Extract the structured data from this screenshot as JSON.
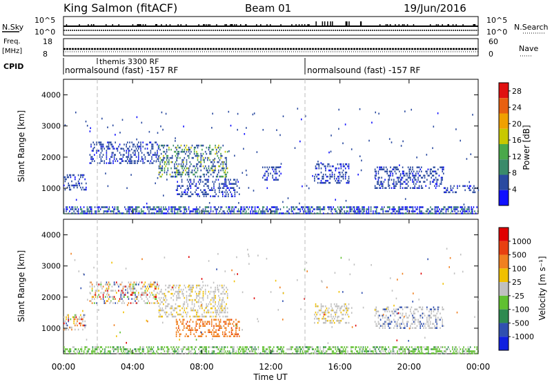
{
  "header": {
    "station": "King Salmon (fitACF)",
    "beam": "Beam 01",
    "date": "19/Jun/2016"
  },
  "strips": {
    "nsky": {
      "label": "N.Sky",
      "ticks": [
        "10^5",
        "10^0"
      ]
    },
    "nsearch": {
      "label": "N.Search",
      "ticks": [
        "10^5",
        "10^0"
      ]
    },
    "freq": {
      "label1": "Freq.",
      "label2": "[MHz]",
      "ticks": [
        "18",
        "8"
      ]
    },
    "nave": {
      "label": "Nave",
      "ticks": [
        "60",
        "0"
      ]
    },
    "cpid": {
      "label": "CPID",
      "segments": [
        {
          "text": "themis 3300 RF",
          "start_hour": 1.5
        },
        {
          "text": "normalsound (fast) -157 RF",
          "start_hour": 0.0
        },
        {
          "text": "normalsound (fast) -157 RF",
          "start_hour": 14.0
        }
      ]
    }
  },
  "chart_data": [
    {
      "type": "heatmap",
      "name_label": "power-panel",
      "ylabel": "Slant Range [km]",
      "ylim": [
        180,
        4500
      ],
      "yticks": [
        "1000",
        "2000",
        "3000",
        "4000"
      ],
      "xlim_hours": [
        0,
        24
      ],
      "colorbar": {
        "label": "Power [dB]",
        "ticks": [
          "4",
          "8",
          "12",
          "16",
          "20",
          "24",
          "28"
        ],
        "range": [
          0,
          30
        ]
      },
      "echo_regions": [
        {
          "t_start": 0.0,
          "t_end": 1.3,
          "r_low": 950,
          "r_high": 1450,
          "value": "low"
        },
        {
          "t_start": 1.5,
          "t_end": 5.5,
          "r_low": 1800,
          "r_high": 2500,
          "value": "low"
        },
        {
          "t_start": 5.5,
          "t_end": 9.5,
          "r_low": 1400,
          "r_high": 2400,
          "value": "mid"
        },
        {
          "t_start": 6.5,
          "t_end": 10.2,
          "r_low": 750,
          "r_high": 1300,
          "value": "low"
        },
        {
          "t_start": 11.5,
          "t_end": 12.5,
          "r_low": 1300,
          "r_high": 1700,
          "value": "low"
        },
        {
          "t_start": 14.5,
          "t_end": 16.5,
          "r_low": 1200,
          "r_high": 1800,
          "value": "low"
        },
        {
          "t_start": 18.0,
          "t_end": 22.0,
          "r_low": 1000,
          "r_high": 1700,
          "value": "low"
        },
        {
          "t_start": 22.0,
          "t_end": 24.0,
          "r_low": 900,
          "r_high": 1100,
          "value": "low"
        },
        {
          "t_start": 0.0,
          "t_end": 24.0,
          "r_low": 200,
          "r_high": 420,
          "value": "ground"
        }
      ]
    },
    {
      "type": "heatmap",
      "name_label": "velocity-panel",
      "ylabel": "Slant Range [km]",
      "xlabel": "Time UT",
      "ylim": [
        180,
        4500
      ],
      "yticks": [
        "1000",
        "2000",
        "3000",
        "4000"
      ],
      "xticks": [
        "00:00",
        "04:00",
        "08:00",
        "12:00",
        "16:00",
        "20:00",
        "00:00"
      ],
      "xlim_hours": [
        0,
        24
      ],
      "colorbar": {
        "label": "Velocity [m s⁻¹]",
        "ticks": [
          "1000",
          "500",
          "100",
          "25",
          "-25",
          "-100",
          "-500",
          "-1000"
        ]
      },
      "echo_regions": [
        {
          "t_start": 0.0,
          "t_end": 1.3,
          "r_low": 950,
          "r_high": 1450,
          "value": "mixed"
        },
        {
          "t_start": 1.5,
          "t_end": 5.5,
          "r_low": 1800,
          "r_high": 2500,
          "value": "mixed"
        },
        {
          "t_start": 5.5,
          "t_end": 9.5,
          "r_low": 1400,
          "r_high": 2400,
          "value": "grey"
        },
        {
          "t_start": 6.5,
          "t_end": 10.2,
          "r_low": 750,
          "r_high": 1300,
          "value": "away"
        },
        {
          "t_start": 14.5,
          "t_end": 16.5,
          "r_low": 1200,
          "r_high": 1800,
          "value": "grey"
        },
        {
          "t_start": 18.0,
          "t_end": 22.0,
          "r_low": 1000,
          "r_high": 1700,
          "value": "toward"
        },
        {
          "t_start": 0.0,
          "t_end": 24.0,
          "r_low": 200,
          "r_high": 420,
          "value": "ground"
        }
      ]
    }
  ],
  "colors": {
    "power_scale": [
      "#1010ff",
      "#2a4aa0",
      "#3a8a6a",
      "#4aa84a",
      "#c8c800",
      "#f0a000",
      "#e86010",
      "#e01010"
    ],
    "velocity_scale": [
      "#1020e0",
      "#3050b0",
      "#2e8a50",
      "#60c030",
      "#c0c0c0",
      "#f0c000",
      "#f08020",
      "#e84010",
      "#e00000"
    ]
  }
}
